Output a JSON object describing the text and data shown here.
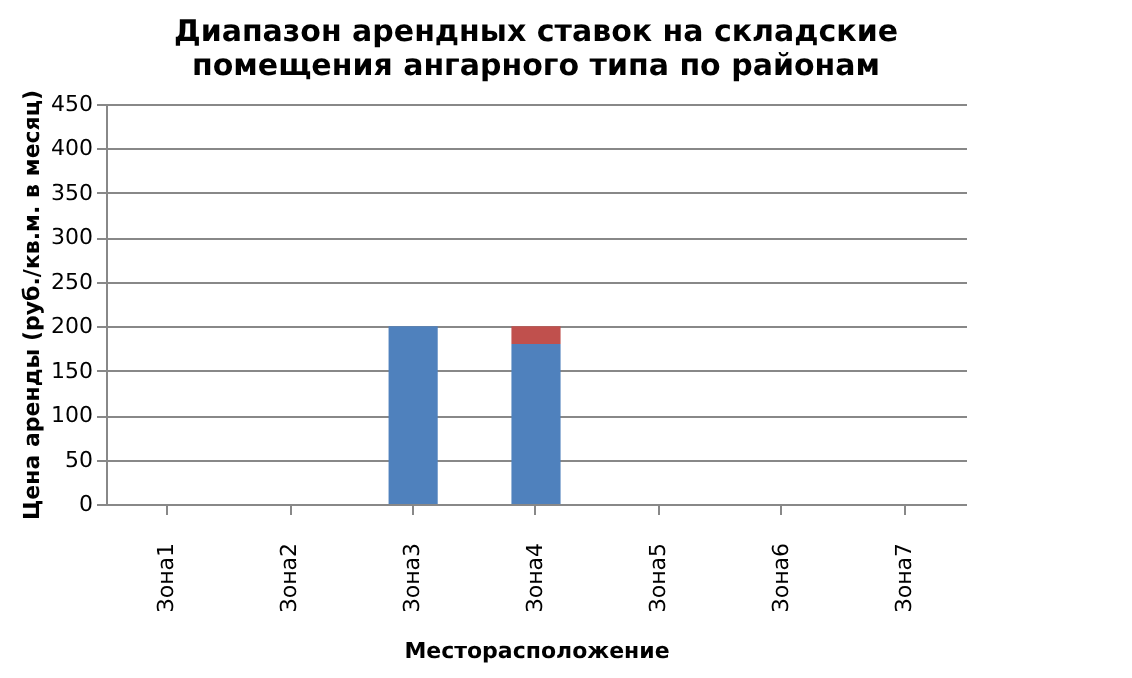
{
  "chart_data": {
    "type": "bar",
    "title": [
      "Диапазон арендных ставок на складские",
      "помещения ангарного типа по районам"
    ],
    "xlabel": "Месторасположение",
    "ylabel": "Цена аренды (руб./кв.м. в месяц)",
    "categories": [
      "Зона1",
      "Зона2",
      "Зона3",
      "Зона4",
      "Зона5",
      "Зона6",
      "Зона7"
    ],
    "stacked": true,
    "series": [
      {
        "color": "#4f81bd",
        "values": [
          null,
          null,
          200,
          180,
          null,
          null,
          null
        ]
      },
      {
        "color": "#c0504d",
        "values": [
          null,
          null,
          null,
          20,
          null,
          null,
          null
        ]
      }
    ],
    "ylim": [
      0,
      450
    ],
    "yticks": [
      0,
      50,
      100,
      150,
      200,
      250,
      300,
      350,
      400,
      450
    ],
    "grid": "y",
    "legend": false
  }
}
